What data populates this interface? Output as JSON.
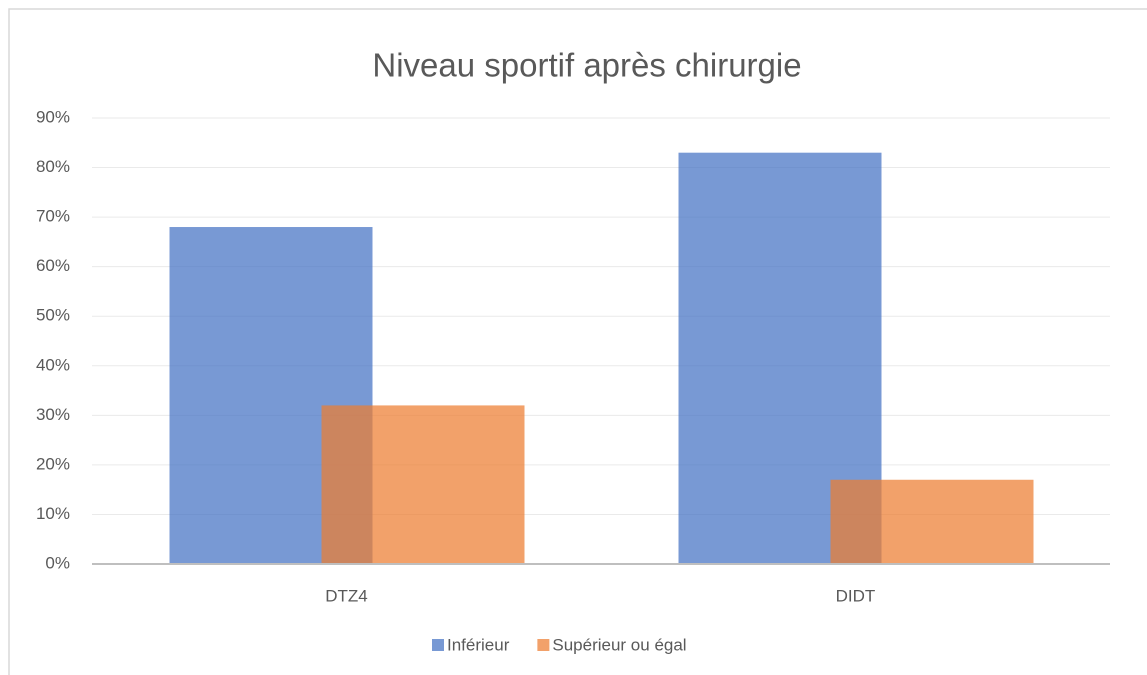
{
  "chart_data": {
    "type": "bar",
    "title": "Niveau sportif après chirurgie",
    "categories": [
      "DTZ4",
      "DIDT"
    ],
    "series": [
      {
        "name": "Inférieur",
        "color": "#4472c4",
        "values": [
          68,
          83
        ]
      },
      {
        "name": "Supérieur ou égal",
        "color": "#ed7d31",
        "values": [
          32,
          17
        ]
      }
    ],
    "ylim": [
      0,
      90
    ],
    "yticks": [
      {
        "value": 0,
        "label": "0%"
      },
      {
        "value": 10,
        "label": "10%"
      },
      {
        "value": 20,
        "label": "20%"
      },
      {
        "value": 30,
        "label": "30%"
      },
      {
        "value": 40,
        "label": "40%"
      },
      {
        "value": 50,
        "label": "50%"
      },
      {
        "value": 60,
        "label": "60%"
      },
      {
        "value": 70,
        "label": "70%"
      },
      {
        "value": 80,
        "label": "80%"
      },
      {
        "value": 90,
        "label": "90%"
      }
    ],
    "grid": true,
    "legend": "bottom"
  }
}
